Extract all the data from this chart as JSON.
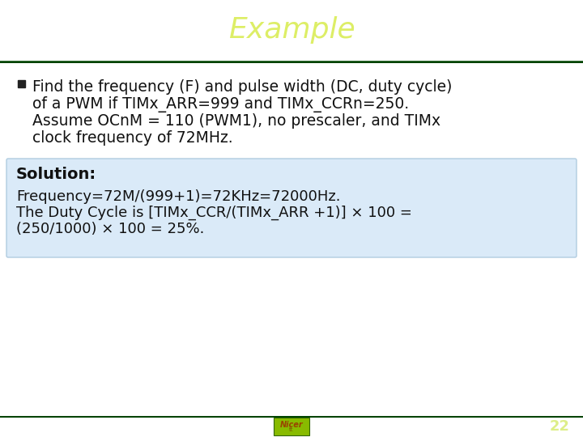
{
  "title": "Example",
  "title_color": "#ddee66",
  "title_bg_color": "#1a9a00",
  "header_dark_edge": "#004400",
  "footer_bg_color": "#1a9a00",
  "footer_dark_edge": "#004400",
  "slide_bg_color": "#ffffff",
  "bullet_line1": "Find the frequency (F) and pulse width (DC, duty cycle)",
  "bullet_line2": "of a PWM if TIMx_ARR=999 and TIMx_CCRn=250.",
  "bullet_line3": "Assume OCnM = 110 (PWM1), no prescaler, and TIMx",
  "bullet_line4": "clock frequency of 72MHz.",
  "solution_label": "Solution:",
  "solution_line1": "Frequency=72M/(999+1)=72KHz=72000Hz.",
  "solution_line2": "The Duty Cycle is [TIMx_CCR/(TIMx_ARR +1)] × 100 =",
  "solution_line3": "(250/1000) × 100 = 25%.",
  "solution_box_color": "#daeaf8",
  "solution_box_border": "#b0cce0",
  "page_number": "22",
  "logo_text": "Nicer",
  "logo_bg": "#88bb00",
  "logo_text_color": "#994400",
  "title_fontsize": 26,
  "body_fontsize": 13.5,
  "solution_label_fontsize": 14,
  "solution_text_fontsize": 13
}
